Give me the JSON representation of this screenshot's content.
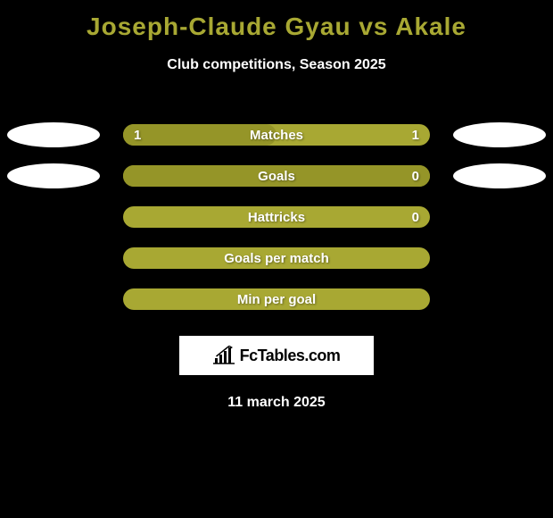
{
  "title": "Joseph-Claude Gyau vs Akale",
  "subtitle": "Club competitions, Season 2025",
  "date": "11 march 2025",
  "logo_text": "FcTables.com",
  "colors": {
    "background": "#000000",
    "accent": "#a8a833",
    "accent_dark": "#959528",
    "text_white": "#ffffff",
    "ellipse": "#ffffff"
  },
  "stats": [
    {
      "label": "Matches",
      "left_value": "1",
      "right_value": "1",
      "fill_pct": 50,
      "show_ellipses": true
    },
    {
      "label": "Goals",
      "left_value": "",
      "right_value": "0",
      "fill_pct": 100,
      "show_ellipses": true
    },
    {
      "label": "Hattricks",
      "left_value": "",
      "right_value": "0",
      "fill_pct": 0,
      "show_ellipses": false
    },
    {
      "label": "Goals per match",
      "left_value": "",
      "right_value": "",
      "fill_pct": 0,
      "show_ellipses": false
    },
    {
      "label": "Min per goal",
      "left_value": "",
      "right_value": "",
      "fill_pct": 0,
      "show_ellipses": false
    }
  ]
}
